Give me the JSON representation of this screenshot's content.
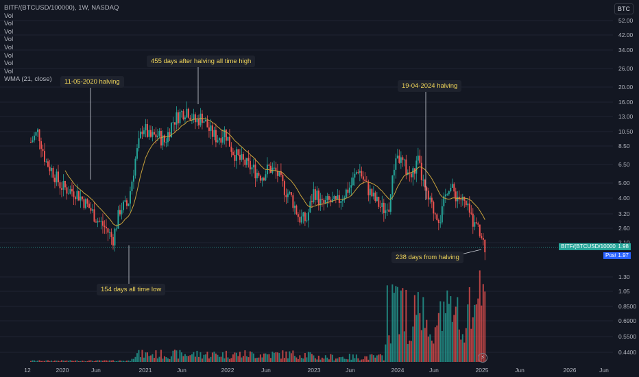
{
  "legend": {
    "title": "BITF/(BTCUSD/100000), 1W, NASDAQ",
    "vol_rows": [
      "Vol",
      "Vol",
      "Vol",
      "Vol",
      "Vol",
      "Vol",
      "Vol",
      "Vol"
    ],
    "wma": "WMA (21, close)"
  },
  "currency_badge": "BTC",
  "last_price": {
    "symbol": "BITF/(BTCUSD/100000)",
    "value": "1.98",
    "post_label": "Post",
    "post_value": "1.97"
  },
  "colors": {
    "up": "#26a69a",
    "down": "#ef5350",
    "wma": "#c8a23c",
    "background": "#131722"
  },
  "annotations": [
    {
      "text": "11-05-2020 halving"
    },
    {
      "text": "455 days after halving all time high"
    },
    {
      "text": "19-04-2024 halving"
    },
    {
      "text": "154 days all time low"
    },
    {
      "text": "238 days from halving"
    }
  ],
  "chart_data": {
    "type": "candlestick",
    "price_scale": "log",
    "price_ticks": [
      "52.00",
      "42.00",
      "34.00",
      "26.00",
      "20.00",
      "16.00",
      "13.00",
      "10.50",
      "8.50",
      "6.50",
      "5.00",
      "4.00",
      "3.20",
      "2.60",
      "2.10"
    ],
    "volume_ticks": [
      "1.30",
      "1.05",
      "0.8500",
      "0.6900",
      "0.5500",
      "0.4400"
    ],
    "time_ticks": [
      "12",
      "2020",
      "Jun",
      "2021",
      "Jun",
      "2022",
      "Jun",
      "2023",
      "Jun",
      "2024",
      "Jun",
      "2025",
      "Jun",
      "2026",
      "Jun"
    ],
    "price_path": [
      [
        "2019-11",
        9.0
      ],
      [
        "2019-12",
        10.5
      ],
      [
        "2020-01",
        6.8
      ],
      [
        "2020-02",
        5.8
      ],
      [
        "2020-03",
        4.8
      ],
      [
        "2020-04",
        4.5
      ],
      [
        "2020-05",
        4.4
      ],
      [
        "2020-06",
        3.9
      ],
      [
        "2020-07",
        3.4
      ],
      [
        "2020-08",
        2.9
      ],
      [
        "2020-09",
        2.6
      ],
      [
        "2020-10",
        2.2
      ],
      [
        "2020-11",
        3.5
      ],
      [
        "2020-12",
        3.6
      ],
      [
        "2021-01",
        7.0
      ],
      [
        "2021-02",
        11.5
      ],
      [
        "2021-03",
        9.5
      ],
      [
        "2021-04",
        10.0
      ],
      [
        "2021-05",
        9.0
      ],
      [
        "2021-06",
        12.0
      ],
      [
        "2021-07",
        13.5
      ],
      [
        "2021-08",
        14.5
      ],
      [
        "2021-09",
        12.0
      ],
      [
        "2021-10",
        13.0
      ],
      [
        "2021-11",
        10.5
      ],
      [
        "2021-12",
        9.5
      ],
      [
        "2022-01",
        10.5
      ],
      [
        "2022-02",
        8.0
      ],
      [
        "2022-03",
        7.0
      ],
      [
        "2022-04",
        6.5
      ],
      [
        "2022-05",
        6.0
      ],
      [
        "2022-06",
        5.5
      ],
      [
        "2022-07",
        6.2
      ],
      [
        "2022-08",
        5.8
      ],
      [
        "2022-09",
        4.6
      ],
      [
        "2022-10",
        4.0
      ],
      [
        "2022-11",
        3.0
      ],
      [
        "2022-12",
        2.9
      ],
      [
        "2023-01",
        4.5
      ],
      [
        "2023-02",
        3.6
      ],
      [
        "2023-03",
        3.8
      ],
      [
        "2023-04",
        3.7
      ],
      [
        "2023-05",
        4.2
      ],
      [
        "2023-06",
        4.8
      ],
      [
        "2023-07",
        6.2
      ],
      [
        "2023-08",
        4.8
      ],
      [
        "2023-09",
        4.0
      ],
      [
        "2023-10",
        3.5
      ],
      [
        "2023-11",
        3.3
      ],
      [
        "2023-12",
        7.5
      ],
      [
        "2024-01",
        6.5
      ],
      [
        "2024-02",
        5.4
      ],
      [
        "2024-03",
        6.8
      ],
      [
        "2024-04",
        4.2
      ],
      [
        "2024-05",
        3.4
      ],
      [
        "2024-06",
        3.0
      ],
      [
        "2024-07",
        4.9
      ],
      [
        "2024-08",
        4.2
      ],
      [
        "2024-09",
        3.8
      ],
      [
        "2024-10",
        3.1
      ],
      [
        "2024-11",
        2.5
      ],
      [
        "2024-12",
        1.98
      ]
    ]
  }
}
